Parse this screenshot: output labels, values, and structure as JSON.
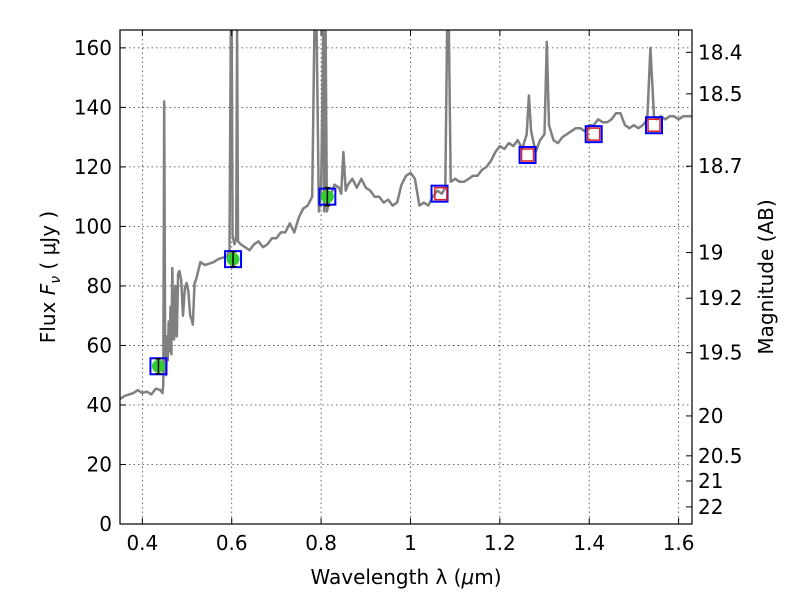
{
  "chart_data": {
    "type": "line",
    "xlabel": "Wavelength  λ (μm)",
    "ylabel": "Flux  F_ν  ( μJy )",
    "ylabel_parts": {
      "prefix": "Flux  ",
      "symbol": "F",
      "sub": "ν",
      "suffix": "  ( μJy )"
    },
    "xlabel_parts": {
      "prefix": "Wavelength  λ (",
      "mu": "μ",
      "suffix": "m)"
    },
    "y2label": "Magnitude (AB)",
    "xlim": [
      0.35,
      1.63
    ],
    "ylim": [
      0,
      166
    ],
    "grid": true,
    "x_ticks": [
      {
        "value": 0.4,
        "label": "0.4"
      },
      {
        "value": 0.6,
        "label": "0.6"
      },
      {
        "value": 0.8,
        "label": "0.8"
      },
      {
        "value": 1.0,
        "label": "1"
      },
      {
        "value": 1.2,
        "label": "1.2"
      },
      {
        "value": 1.4,
        "label": "1.4"
      },
      {
        "value": 1.6,
        "label": "1.6"
      }
    ],
    "y_ticks": [
      {
        "value": 0,
        "label": "0"
      },
      {
        "value": 20,
        "label": "20"
      },
      {
        "value": 40,
        "label": "40"
      },
      {
        "value": 60,
        "label": "60"
      },
      {
        "value": 80,
        "label": "80"
      },
      {
        "value": 100,
        "label": "100"
      },
      {
        "value": 120,
        "label": "120"
      },
      {
        "value": 140,
        "label": "140"
      },
      {
        "value": 160,
        "label": "160"
      }
    ],
    "y2_ticks": [
      {
        "value": 18.4,
        "label": "18.4"
      },
      {
        "value": 18.5,
        "label": "18.5"
      },
      {
        "value": 18.7,
        "label": "18.7"
      },
      {
        "value": 19,
        "label": "19"
      },
      {
        "value": 19.2,
        "label": "19.2"
      },
      {
        "value": 19.5,
        "label": "19.5"
      },
      {
        "value": 20,
        "label": "20"
      },
      {
        "value": 20.5,
        "label": "20.5"
      },
      {
        "value": 21,
        "label": "21"
      },
      {
        "value": 22,
        "label": "22"
      }
    ],
    "spectrum": {
      "color": "#808080",
      "points": [
        [
          0.35,
          42
        ],
        [
          0.36,
          43
        ],
        [
          0.37,
          43.5
        ],
        [
          0.38,
          44
        ],
        [
          0.39,
          45
        ],
        [
          0.4,
          44
        ],
        [
          0.41,
          44.5
        ],
        [
          0.42,
          43.5
        ],
        [
          0.43,
          45.5
        ],
        [
          0.44,
          45
        ],
        [
          0.445,
          44
        ],
        [
          0.447,
          47
        ],
        [
          0.449,
          142
        ],
        [
          0.451,
          60
        ],
        [
          0.453,
          50
        ],
        [
          0.455,
          63
        ],
        [
          0.457,
          55
        ],
        [
          0.459,
          68
        ],
        [
          0.461,
          58
        ],
        [
          0.463,
          73
        ],
        [
          0.465,
          57
        ],
        [
          0.467,
          86
        ],
        [
          0.469,
          70
        ],
        [
          0.471,
          62
        ],
        [
          0.474,
          80
        ],
        [
          0.477,
          63
        ],
        [
          0.48,
          84
        ],
        [
          0.483,
          85
        ],
        [
          0.487,
          82
        ],
        [
          0.491,
          70
        ],
        [
          0.495,
          79
        ],
        [
          0.499,
          81
        ],
        [
          0.503,
          78
        ],
        [
          0.507,
          70
        ],
        [
          0.51,
          69
        ],
        [
          0.513,
          67
        ],
        [
          0.517,
          81
        ],
        [
          0.52,
          82
        ],
        [
          0.525,
          85
        ],
        [
          0.53,
          88
        ],
        [
          0.54,
          87
        ],
        [
          0.55,
          87.5
        ],
        [
          0.56,
          88
        ],
        [
          0.57,
          89
        ],
        [
          0.58,
          89.5
        ],
        [
          0.59,
          90
        ],
        [
          0.595,
          92
        ],
        [
          0.598,
          166
        ],
        [
          0.6,
          166
        ],
        [
          0.602,
          97
        ],
        [
          0.606,
          94
        ],
        [
          0.61,
          96
        ],
        [
          0.612,
          166
        ],
        [
          0.614,
          95
        ],
        [
          0.62,
          94
        ],
        [
          0.63,
          93
        ],
        [
          0.64,
          92
        ],
        [
          0.65,
          94
        ],
        [
          0.66,
          95
        ],
        [
          0.67,
          93
        ],
        [
          0.68,
          94
        ],
        [
          0.69,
          96
        ],
        [
          0.7,
          96
        ],
        [
          0.71,
          98
        ],
        [
          0.72,
          98
        ],
        [
          0.73,
          101
        ],
        [
          0.74,
          98
        ],
        [
          0.75,
          103
        ],
        [
          0.76,
          106
        ],
        [
          0.77,
          107
        ],
        [
          0.78,
          110
        ],
        [
          0.785,
          166
        ],
        [
          0.79,
          166
        ],
        [
          0.795,
          105
        ],
        [
          0.8,
          112
        ],
        [
          0.805,
          166
        ],
        [
          0.807,
          105
        ],
        [
          0.81,
          166
        ],
        [
          0.813,
          105
        ],
        [
          0.82,
          110
        ],
        [
          0.83,
          114
        ],
        [
          0.84,
          113
        ],
        [
          0.845,
          111
        ],
        [
          0.85,
          125
        ],
        [
          0.855,
          112
        ],
        [
          0.86,
          114
        ],
        [
          0.87,
          116
        ],
        [
          0.88,
          113
        ],
        [
          0.89,
          116
        ],
        [
          0.9,
          113
        ],
        [
          0.91,
          112
        ],
        [
          0.92,
          110
        ],
        [
          0.93,
          110
        ],
        [
          0.94,
          108
        ],
        [
          0.95,
          109
        ],
        [
          0.96,
          107
        ],
        [
          0.97,
          108
        ],
        [
          0.98,
          114
        ],
        [
          0.99,
          117
        ],
        [
          1.0,
          118
        ],
        [
          1.01,
          116
        ],
        [
          1.02,
          107
        ],
        [
          1.03,
          108
        ],
        [
          1.04,
          107
        ],
        [
          1.05,
          110
        ],
        [
          1.06,
          112
        ],
        [
          1.07,
          111
        ],
        [
          1.078,
          113
        ],
        [
          1.082,
          166
        ],
        [
          1.086,
          166
        ],
        [
          1.09,
          115
        ],
        [
          1.1,
          116
        ],
        [
          1.11,
          115
        ],
        [
          1.12,
          115
        ],
        [
          1.13,
          116
        ],
        [
          1.14,
          117
        ],
        [
          1.15,
          117
        ],
        [
          1.16,
          119
        ],
        [
          1.17,
          120
        ],
        [
          1.18,
          122
        ],
        [
          1.19,
          125
        ],
        [
          1.2,
          127
        ],
        [
          1.21,
          126
        ],
        [
          1.22,
          128
        ],
        [
          1.23,
          127
        ],
        [
          1.24,
          129
        ],
        [
          1.25,
          126
        ],
        [
          1.26,
          131
        ],
        [
          1.265,
          144
        ],
        [
          1.27,
          132
        ],
        [
          1.28,
          125
        ],
        [
          1.29,
          129
        ],
        [
          1.3,
          131
        ],
        [
          1.305,
          162
        ],
        [
          1.31,
          134
        ],
        [
          1.32,
          129
        ],
        [
          1.33,
          128
        ],
        [
          1.34,
          130
        ],
        [
          1.35,
          131
        ],
        [
          1.36,
          132
        ],
        [
          1.37,
          133
        ],
        [
          1.38,
          133
        ],
        [
          1.39,
          132
        ],
        [
          1.4,
          134
        ],
        [
          1.41,
          134
        ],
        [
          1.42,
          136
        ],
        [
          1.43,
          135
        ],
        [
          1.44,
          135
        ],
        [
          1.45,
          136
        ],
        [
          1.46,
          138
        ],
        [
          1.47,
          138
        ],
        [
          1.48,
          134
        ],
        [
          1.49,
          133
        ],
        [
          1.5,
          134
        ],
        [
          1.51,
          133
        ],
        [
          1.52,
          134
        ],
        [
          1.53,
          136
        ],
        [
          1.537,
          160
        ],
        [
          1.545,
          137
        ],
        [
          1.55,
          136
        ],
        [
          1.56,
          137
        ],
        [
          1.57,
          136
        ],
        [
          1.58,
          137
        ],
        [
          1.59,
          137
        ],
        [
          1.6,
          136
        ],
        [
          1.61,
          137
        ],
        [
          1.62,
          137
        ],
        [
          1.63,
          137
        ]
      ]
    },
    "photometry_green": {
      "color": "#33cc33",
      "points": [
        {
          "x": 0.436,
          "y": 53,
          "err": 2.5
        },
        {
          "x": 0.603,
          "y": 89,
          "err": 2.5
        },
        {
          "x": 0.814,
          "y": 110,
          "err": 3
        }
      ]
    },
    "model_blue_squares": {
      "color": "#0000ff",
      "points": [
        {
          "x": 0.436,
          "y": 53
        },
        {
          "x": 0.603,
          "y": 89
        },
        {
          "x": 0.814,
          "y": 110
        },
        {
          "x": 1.065,
          "y": 111
        },
        {
          "x": 1.262,
          "y": 124
        },
        {
          "x": 1.41,
          "y": 131
        },
        {
          "x": 1.545,
          "y": 134
        }
      ]
    },
    "model_red_squares": {
      "color": "#dd2222",
      "points": [
        {
          "x": 1.068,
          "y": 111
        },
        {
          "x": 1.262,
          "y": 124
        },
        {
          "x": 1.41,
          "y": 131
        },
        {
          "x": 1.545,
          "y": 134
        }
      ]
    }
  }
}
